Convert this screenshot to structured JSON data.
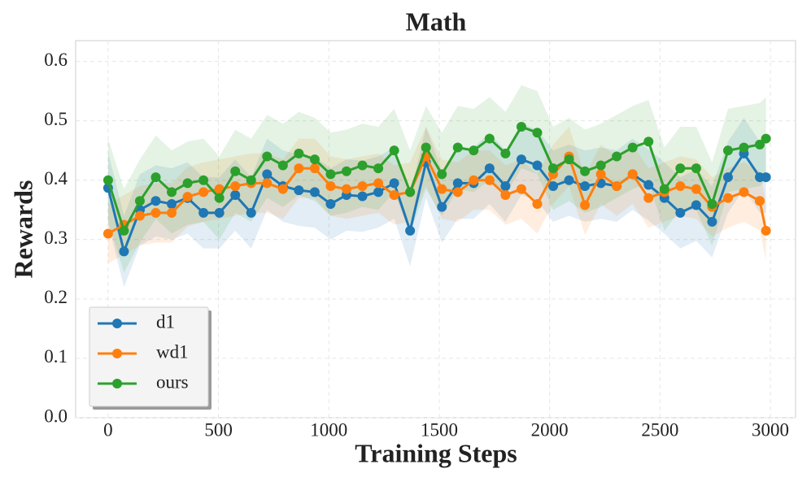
{
  "chart_data": {
    "type": "line",
    "title": "Math",
    "x_label": "Training Steps",
    "y_label": "Rewards",
    "x": [
      0,
      72,
      144,
      216,
      288,
      360,
      432,
      504,
      576,
      648,
      720,
      792,
      864,
      936,
      1008,
      1080,
      1152,
      1224,
      1296,
      1368,
      1440,
      1512,
      1584,
      1656,
      1728,
      1800,
      1872,
      1944,
      2016,
      2088,
      2160,
      2232,
      2304,
      2376,
      2448,
      2520,
      2592,
      2664,
      2736,
      2808,
      2880,
      2952,
      2980
    ],
    "series": [
      {
        "name": "d1",
        "color": "#1f77b4",
        "std": 0.06,
        "values": [
          0.387,
          0.28,
          0.35,
          0.365,
          0.36,
          0.37,
          0.345,
          0.345,
          0.375,
          0.345,
          0.41,
          0.39,
          0.383,
          0.38,
          0.36,
          0.375,
          0.373,
          0.38,
          0.395,
          0.315,
          0.43,
          0.355,
          0.395,
          0.395,
          0.42,
          0.39,
          0.435,
          0.425,
          0.39,
          0.4,
          0.39,
          0.395,
          0.39,
          0.41,
          0.392,
          0.37,
          0.345,
          0.358,
          0.33,
          0.405,
          0.445,
          0.405,
          0.405
        ]
      },
      {
        "name": "wd1",
        "color": "#ff7f0e",
        "std": 0.05,
        "values": [
          0.31,
          0.325,
          0.34,
          0.345,
          0.345,
          0.372,
          0.38,
          0.385,
          0.39,
          0.395,
          0.395,
          0.385,
          0.42,
          0.42,
          0.39,
          0.385,
          0.39,
          0.395,
          0.375,
          0.38,
          0.44,
          0.385,
          0.38,
          0.4,
          0.4,
          0.375,
          0.385,
          0.36,
          0.41,
          0.44,
          0.358,
          0.41,
          0.39,
          0.41,
          0.37,
          0.38,
          0.39,
          0.385,
          0.355,
          0.37,
          0.38,
          0.365,
          0.315
        ]
      },
      {
        "name": "ours",
        "color": "#2ca02c",
        "std": 0.07,
        "values": [
          0.4,
          0.315,
          0.365,
          0.405,
          0.38,
          0.395,
          0.4,
          0.37,
          0.415,
          0.4,
          0.44,
          0.425,
          0.445,
          0.435,
          0.41,
          0.415,
          0.425,
          0.42,
          0.45,
          0.38,
          0.455,
          0.41,
          0.455,
          0.45,
          0.47,
          0.445,
          0.49,
          0.48,
          0.42,
          0.435,
          0.415,
          0.425,
          0.44,
          0.455,
          0.465,
          0.385,
          0.42,
          0.42,
          0.36,
          0.45,
          0.455,
          0.46,
          0.47
        ]
      }
    ],
    "xlim": [
      -147,
      3114
    ],
    "ylim": [
      0,
      0.635
    ],
    "xticks": [
      0,
      500,
      1000,
      1500,
      2000,
      2500,
      3000
    ],
    "yticks": [
      {
        "value": 0,
        "label": "0.0"
      },
      {
        "value": 0.1,
        "label": "0.1"
      },
      {
        "value": 0.2,
        "label": "0.2"
      },
      {
        "value": 0.3,
        "label": "0.3"
      },
      {
        "value": 0.4,
        "label": "0.4"
      },
      {
        "value": 0.5,
        "label": "0.5"
      },
      {
        "value": 0.6,
        "label": "0.6"
      }
    ],
    "grid": true,
    "legend": "lower left"
  }
}
